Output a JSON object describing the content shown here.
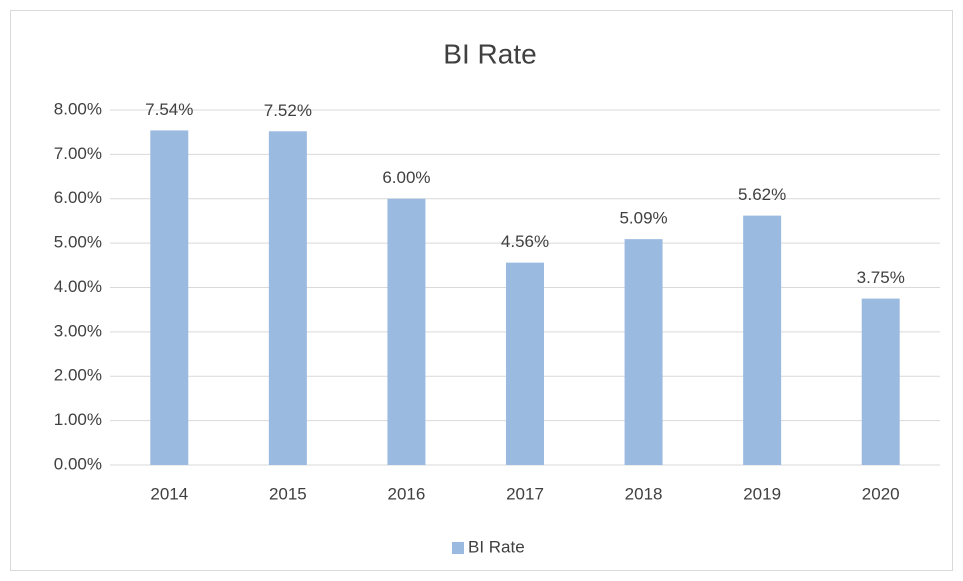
{
  "chart_data": {
    "type": "bar",
    "title": "BI Rate",
    "categories": [
      "2014",
      "2015",
      "2016",
      "2017",
      "2018",
      "2019",
      "2020"
    ],
    "series": [
      {
        "name": "BI Rate",
        "color": "#9bbae0",
        "values": [
          7.54,
          7.52,
          6.0,
          4.56,
          5.09,
          5.62,
          3.75
        ],
        "value_labels": [
          "7.54%",
          "7.52%",
          "6.00%",
          "4.56%",
          "5.09%",
          "5.62%",
          "3.75%"
        ]
      }
    ],
    "ylim": [
      0,
      8
    ],
    "yticks": [
      {
        "value": 0,
        "label": "0.00%"
      },
      {
        "value": 1,
        "label": "1.00%"
      },
      {
        "value": 2,
        "label": "2.00%"
      },
      {
        "value": 3,
        "label": "3.00%"
      },
      {
        "value": 4,
        "label": "4.00%"
      },
      {
        "value": 5,
        "label": "5.00%"
      },
      {
        "value": 6,
        "label": "6.00%"
      },
      {
        "value": 7,
        "label": "7.00%"
      },
      {
        "value": 8,
        "label": "8.00%"
      }
    ],
    "grid": true,
    "legend": "bottom"
  }
}
